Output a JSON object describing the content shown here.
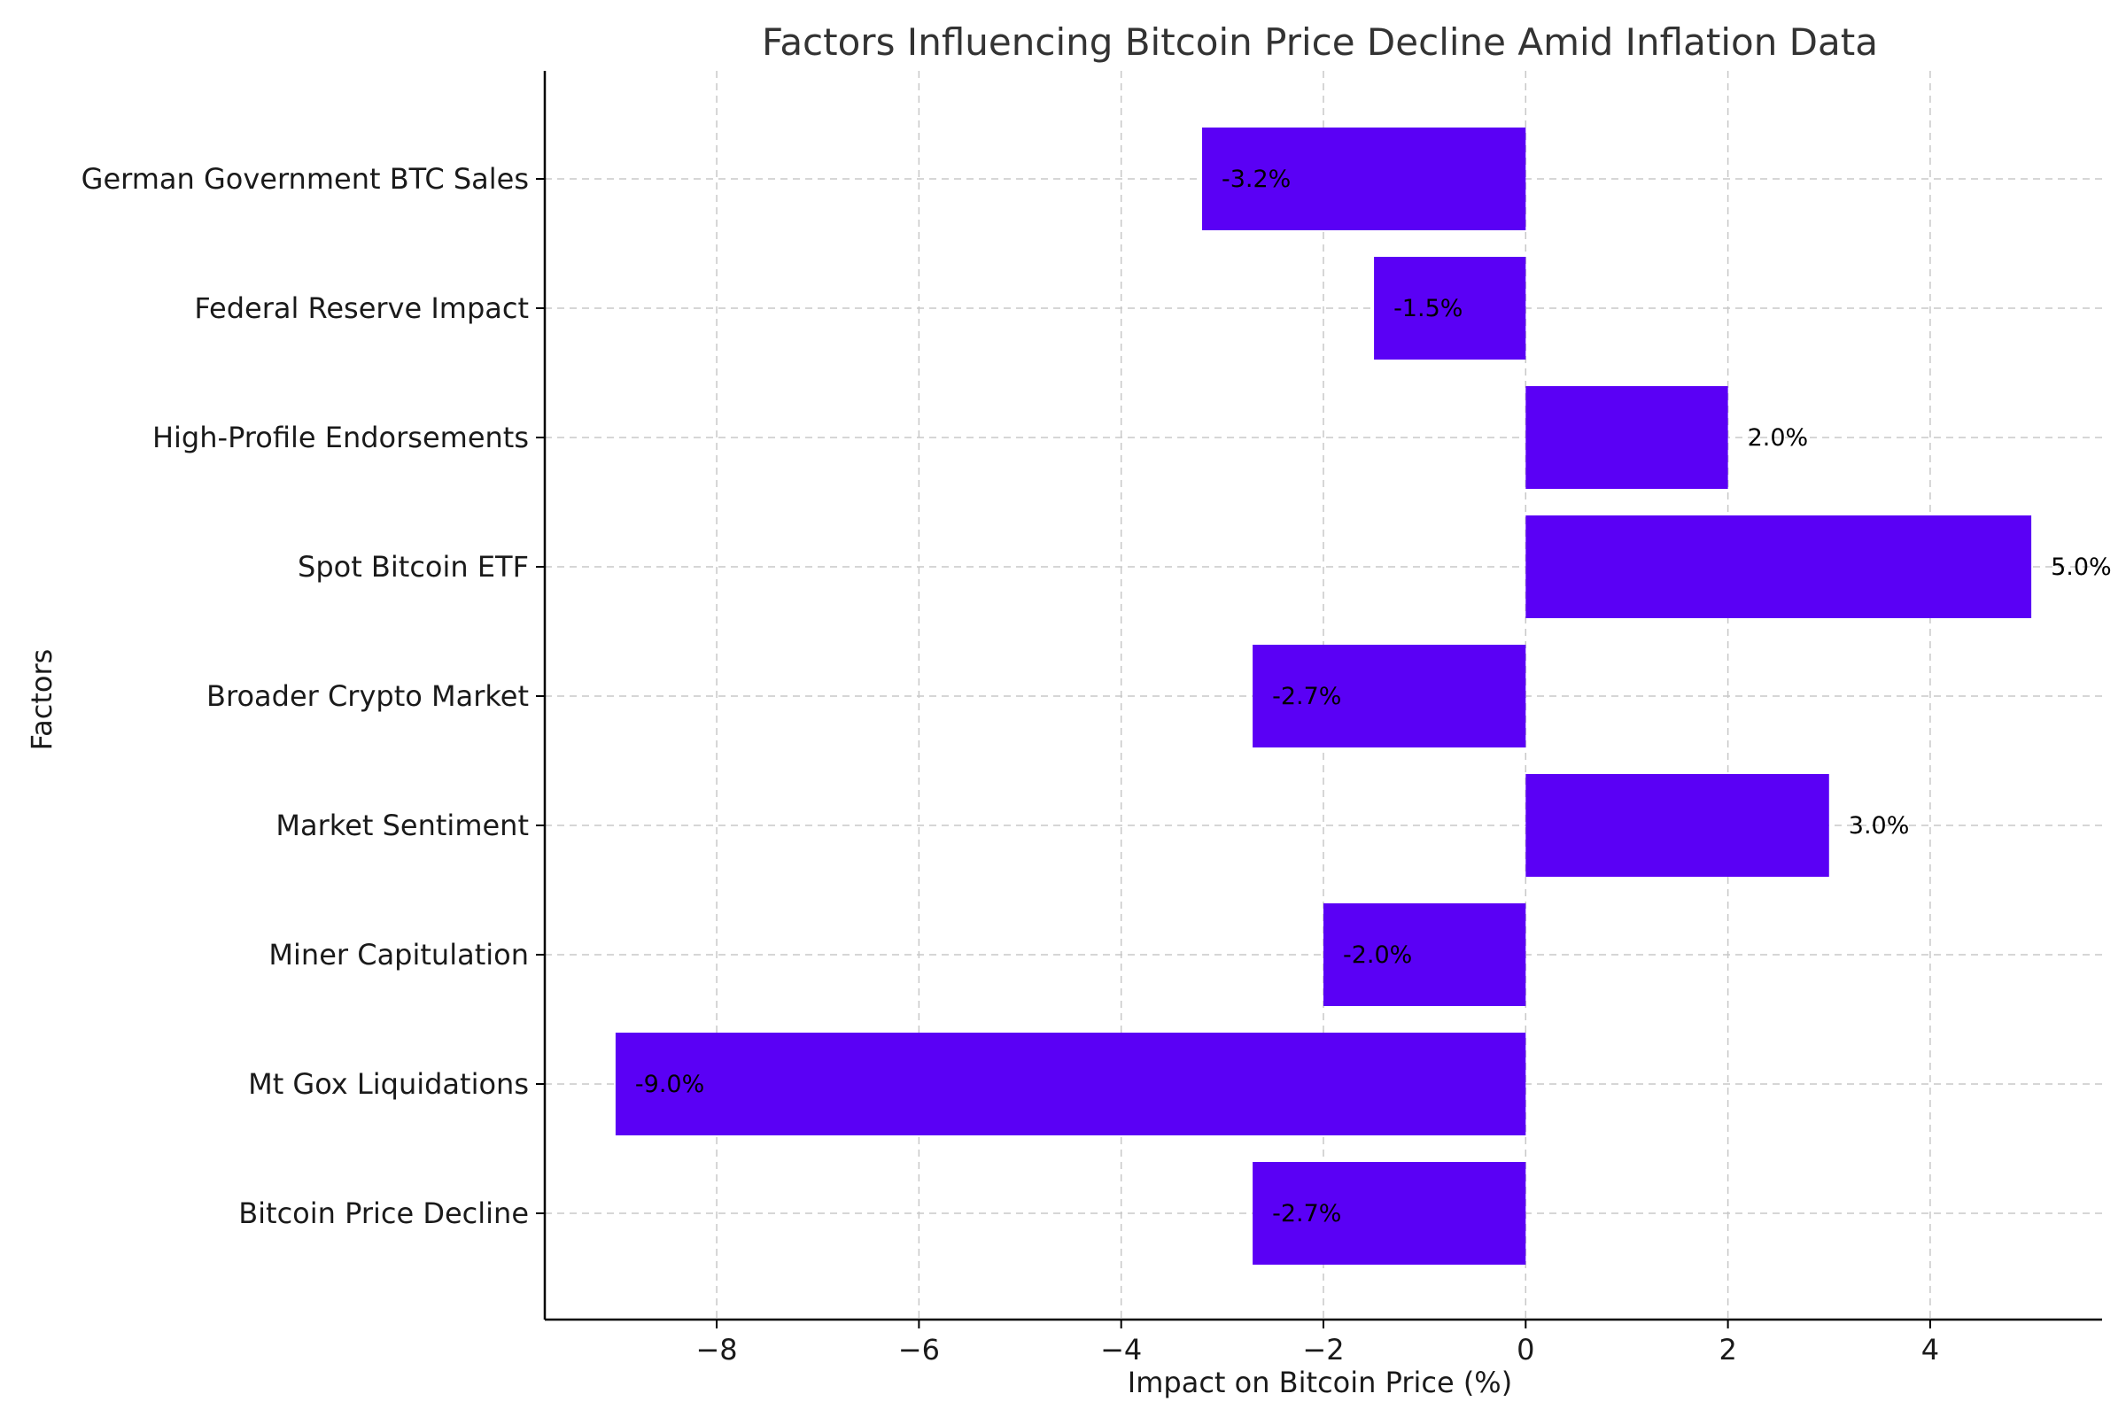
{
  "chart_data": {
    "type": "bar",
    "orientation": "horizontal",
    "title": "Factors Influencing Bitcoin Price Decline Amid Inflation Data",
    "xlabel": "Impact on Bitcoin Price (%)",
    "ylabel": "Factors",
    "categories": [
      "Bitcoin Price Decline",
      "Mt Gox Liquidations",
      "Miner Capitulation",
      "Market Sentiment",
      "Broader Crypto Market",
      "Spot Bitcoin ETF",
      "High-Profile Endorsements",
      "Federal Reserve Impact",
      "German Government BTC Sales"
    ],
    "values": [
      -2.7,
      -9.0,
      -2.0,
      3.0,
      -2.7,
      5.0,
      2.0,
      -1.5,
      -3.2
    ],
    "data_labels": [
      "-2.7%",
      "-9.0%",
      "-2.0%",
      "3.0%",
      "-2.7%",
      "5.0%",
      "2.0%",
      "-1.5%",
      "-3.2%"
    ],
    "xticks": [
      -8,
      -6,
      -4,
      -2,
      0,
      2,
      4
    ],
    "xtick_labels": [
      "−8",
      "−6",
      "−4",
      "−2",
      "0",
      "2",
      "4"
    ],
    "xlim": [
      -9.7,
      5.7
    ],
    "bar_color": "#5a00f5",
    "grid": true
  }
}
